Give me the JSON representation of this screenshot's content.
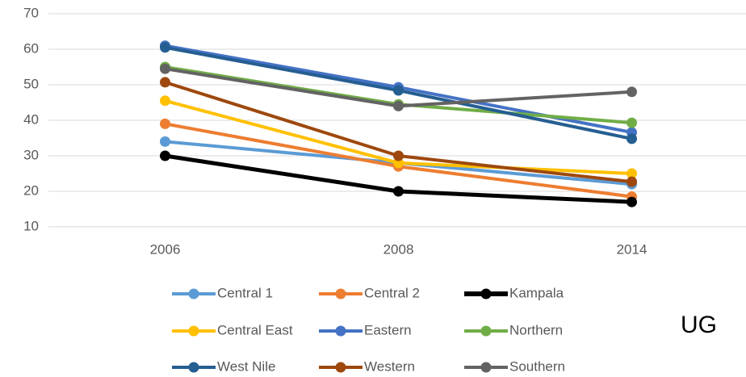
{
  "chart_data": {
    "type": "line",
    "categories": [
      "2006",
      "2008",
      "2014"
    ],
    "series": [
      {
        "name": "Central 1",
        "color": "#5b9bd5",
        "values": [
          34,
          28,
          22
        ]
      },
      {
        "name": "Central 2",
        "color": "#ed7d31",
        "values": [
          39,
          27,
          18.5
        ]
      },
      {
        "name": "Kampala",
        "color": "#000000",
        "values": [
          30,
          20,
          17
        ]
      },
      {
        "name": "Central East",
        "color": "#ffc000",
        "values": [
          45.5,
          28,
          25
        ]
      },
      {
        "name": "Eastern",
        "color": "#4472c4",
        "values": [
          61,
          49.3,
          36.6
        ]
      },
      {
        "name": "Northern",
        "color": "#70ad47",
        "values": [
          55,
          44.5,
          39.3
        ]
      },
      {
        "name": "West Nile",
        "color": "#255e91",
        "values": [
          60.5,
          48.4,
          34.8
        ]
      },
      {
        "name": "Western",
        "color": "#9e480e",
        "values": [
          50.7,
          30,
          22.7
        ]
      },
      {
        "name": "Southern",
        "color": "#636363",
        "values": [
          54.5,
          44,
          48
        ]
      }
    ],
    "ylim": [
      10,
      70
    ],
    "yticks": [
      10,
      20,
      30,
      40,
      50,
      60,
      70
    ],
    "grid": true,
    "legend": "bottom",
    "annotation": "UG"
  }
}
